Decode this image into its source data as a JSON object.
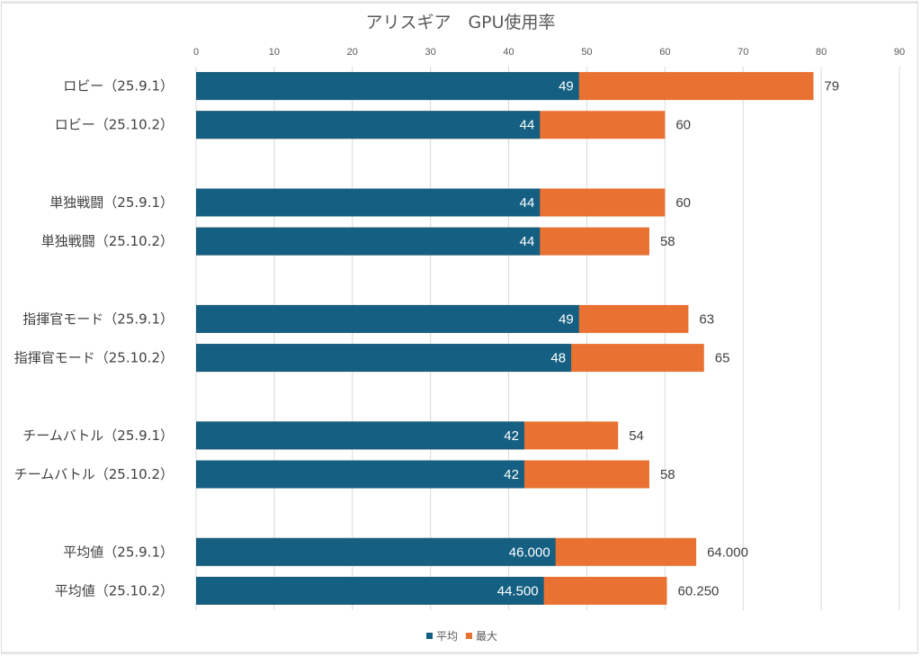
{
  "chart_data": {
    "type": "bar",
    "orientation": "horizontal",
    "overlap": true,
    "title": "アリスギア　GPU使用率",
    "xlabel": "",
    "ylabel": "",
    "xlim": [
      0,
      90
    ],
    "x_ticks": [
      "0",
      "10",
      "20",
      "30",
      "40",
      "50",
      "60",
      "70",
      "80",
      "90"
    ],
    "grid": true,
    "legend_position": "bottom",
    "categories": [
      "ロビー（25.9.1）",
      "ロビー（25.10.2）",
      "",
      "単独戦闘（25.9.1）",
      "単独戦闘（25.10.2）",
      "",
      "指揮官モード（25.9.1）",
      "指揮官モード（25.10.2）",
      "",
      "チームバトル（25.9.1）",
      "チームバトル（25.10.2）",
      "",
      "平均値（25.9.1）",
      "平均値（25.10.2）"
    ],
    "series": [
      {
        "name": "最大",
        "color": "#E97132",
        "values": [
          79,
          60,
          null,
          60,
          58,
          null,
          63,
          65,
          null,
          54,
          58,
          null,
          64.0,
          60.25
        ],
        "labels": [
          "79",
          "60",
          "",
          "60",
          "58",
          "",
          "63",
          "65",
          "",
          "54",
          "58",
          "",
          "64.000",
          "60.250"
        ]
      },
      {
        "name": "平均",
        "color": "#156082",
        "values": [
          49,
          44,
          null,
          44,
          44,
          null,
          49,
          48,
          null,
          42,
          42,
          null,
          46.0,
          44.5
        ],
        "labels": [
          "49",
          "44",
          "",
          "44",
          "44",
          "",
          "49",
          "48",
          "",
          "42",
          "42",
          "",
          "46.000",
          "44.500"
        ]
      }
    ],
    "legend": [
      {
        "name": "平均",
        "color": "#156082"
      },
      {
        "name": "最大",
        "color": "#E97132"
      }
    ]
  }
}
